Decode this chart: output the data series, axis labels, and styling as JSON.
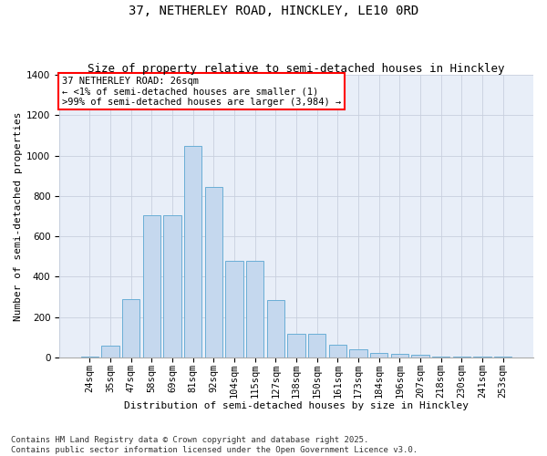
{
  "title_line1": "37, NETHERLEY ROAD, HINCKLEY, LE10 0RD",
  "title_line2": "Size of property relative to semi-detached houses in Hinckley",
  "xlabel": "Distribution of semi-detached houses by size in Hinckley",
  "ylabel": "Number of semi-detached properties",
  "categories": [
    "24sqm",
    "35sqm",
    "47sqm",
    "58sqm",
    "69sqm",
    "81sqm",
    "92sqm",
    "104sqm",
    "115sqm",
    "127sqm",
    "138sqm",
    "150sqm",
    "161sqm",
    "173sqm",
    "184sqm",
    "196sqm",
    "207sqm",
    "218sqm",
    "230sqm",
    "241sqm",
    "253sqm"
  ],
  "values": [
    5,
    60,
    290,
    705,
    705,
    1050,
    845,
    480,
    480,
    285,
    120,
    120,
    65,
    42,
    25,
    20,
    12,
    7,
    4,
    3,
    3
  ],
  "bar_color": "#c5d8ee",
  "bar_edge_color": "#6aaed6",
  "ylim": [
    0,
    1400
  ],
  "yticks": [
    0,
    200,
    400,
    600,
    800,
    1000,
    1200,
    1400
  ],
  "annotation_text": "37 NETHERLEY ROAD: 26sqm\n← <1% of semi-detached houses are smaller (1)\n>99% of semi-detached houses are larger (3,984) →",
  "background_color": "#e8eef8",
  "grid_color": "#c8d0de",
  "footnote": "Contains HM Land Registry data © Crown copyright and database right 2025.\nContains public sector information licensed under the Open Government Licence v3.0.",
  "title_fontsize": 10,
  "subtitle_fontsize": 9,
  "axis_label_fontsize": 8,
  "tick_fontsize": 7.5,
  "footnote_fontsize": 6.5
}
